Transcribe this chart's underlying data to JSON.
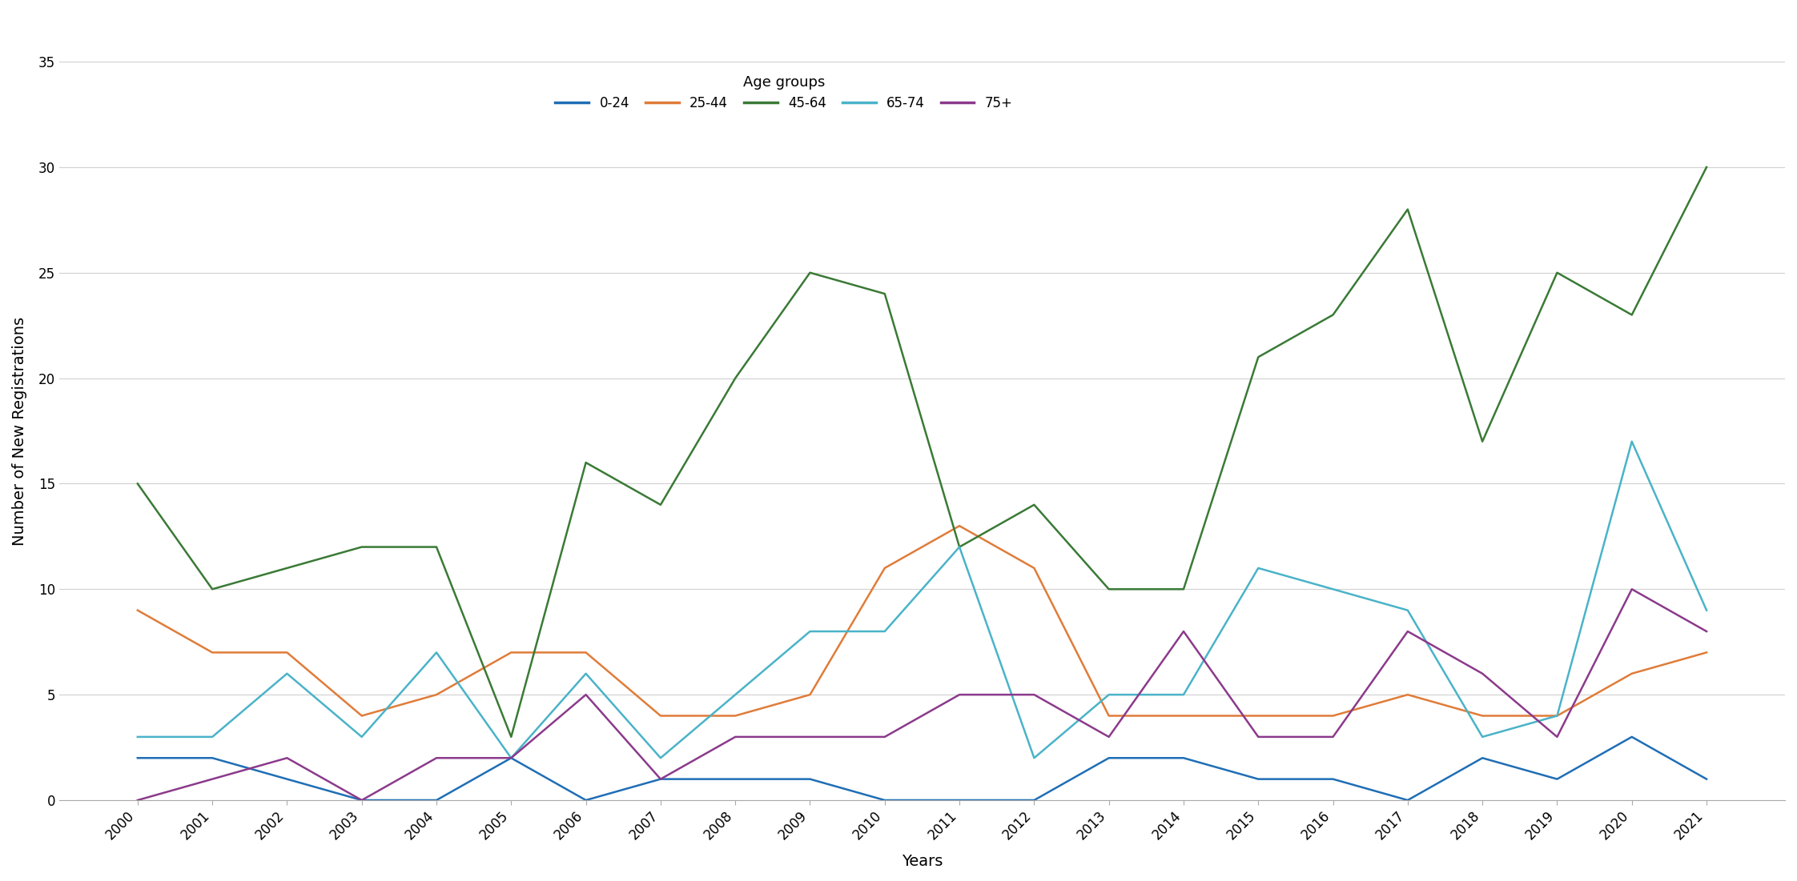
{
  "years": [
    2000,
    2001,
    2002,
    2003,
    2004,
    2005,
    2006,
    2007,
    2008,
    2009,
    2010,
    2011,
    2012,
    2013,
    2014,
    2015,
    2016,
    2017,
    2018,
    2019,
    2020,
    2021
  ],
  "series": {
    "0-24": [
      2,
      2,
      1,
      0,
      0,
      2,
      0,
      1,
      1,
      1,
      0,
      0,
      0,
      2,
      2,
      1,
      1,
      0,
      2,
      1,
      3,
      1
    ],
    "25-44": [
      9,
      7,
      7,
      4,
      5,
      7,
      7,
      4,
      4,
      5,
      11,
      13,
      11,
      4,
      4,
      4,
      4,
      5,
      4,
      4,
      6,
      7
    ],
    "45-64": [
      15,
      10,
      11,
      12,
      12,
      3,
      16,
      14,
      20,
      25,
      24,
      12,
      14,
      10,
      10,
      21,
      23,
      28,
      17,
      25,
      23,
      30
    ],
    "65-74": [
      3,
      3,
      6,
      3,
      7,
      2,
      6,
      2,
      5,
      8,
      8,
      12,
      2,
      5,
      5,
      11,
      10,
      9,
      3,
      4,
      17,
      9
    ],
    "75+": [
      0,
      1,
      2,
      0,
      2,
      2,
      5,
      1,
      3,
      3,
      3,
      5,
      5,
      3,
      8,
      3,
      3,
      8,
      6,
      3,
      10,
      8
    ]
  },
  "colors": {
    "0-24": "#1f6eb5",
    "25-44": "#e07c39",
    "45-64": "#3a7a36",
    "65-74": "#4ab3c8",
    "75+": "#8b3a8b"
  },
  "xlabel": "Years",
  "ylabel": "Number of New Registrations",
  "ylim": [
    0,
    35
  ],
  "yticks": [
    0,
    5,
    10,
    15,
    20,
    25,
    30,
    35
  ],
  "legend_title": "Age groups",
  "background_color": "#ffffff",
  "grid_color": "#d0d0d0"
}
